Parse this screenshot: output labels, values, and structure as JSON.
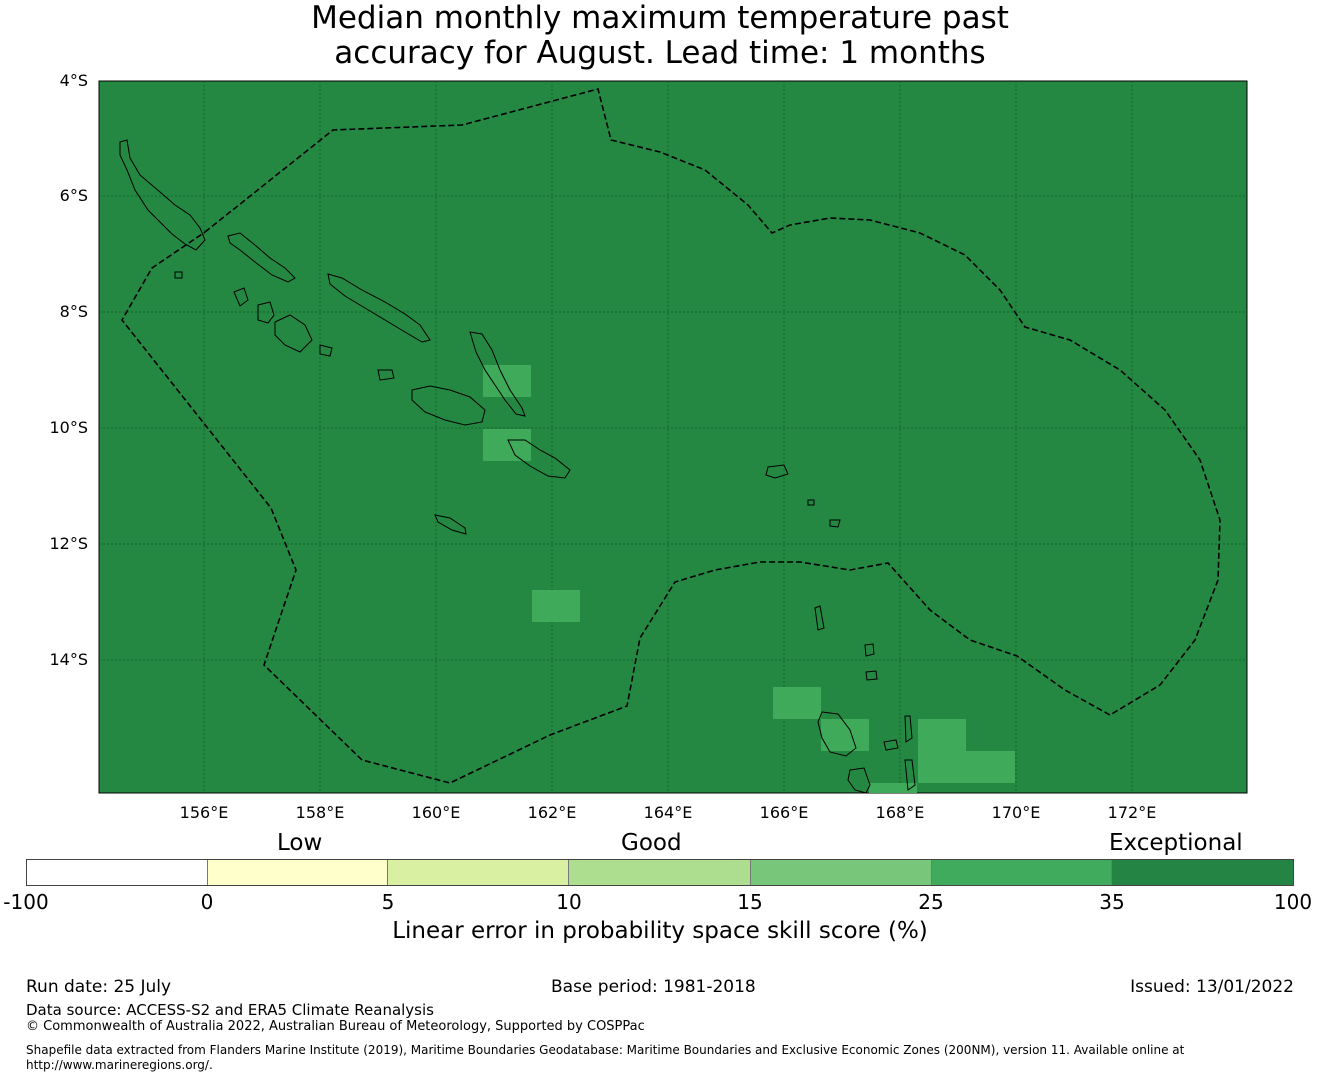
{
  "title_line1": "Median monthly maximum temperature past",
  "title_line2": "accuracy for August. Lead time: 1 months",
  "map": {
    "lat_labels": [
      "4°S",
      "6°S",
      "8°S",
      "10°S",
      "12°S",
      "14°S"
    ],
    "lon_labels": [
      "156°E",
      "158°E",
      "160°E",
      "162°E",
      "164°E",
      "166°E",
      "168°E",
      "170°E",
      "172°E"
    ],
    "background_color": "#248843",
    "highlight_color": "#3eaa5a"
  },
  "legend": {
    "categories": [
      "Low",
      "Good",
      "Exceptional"
    ],
    "ticks": [
      "-100",
      "0",
      "5",
      "10",
      "15",
      "25",
      "35",
      "100"
    ],
    "colors": [
      "#ffffff",
      "#ffffcc",
      "#d9f0a3",
      "#addd8e",
      "#78c679",
      "#41ab5d",
      "#238443"
    ],
    "label": "Linear error in probability space skill score (%)"
  },
  "footer": {
    "run_date": "Run date: 25 July",
    "base_period": "Base period: 1981-2018",
    "issued": "Issued: 13/01/2022",
    "data_source": "Data source: ACCESS-S2 and ERA5 Climate Reanalysis",
    "copyright": "© Commonwealth of Australia 2022, Australian Bureau of Meteorology, Supported by COSPPac",
    "shapefile_line1": "Shapefile data extracted from Flanders Marine Institute (2019), Maritime Boundaries Geodatabase: Maritime Boundaries and Exclusive Economic Zones (200NM), version 11. Available online at",
    "shapefile_line2": "http://www.marineregions.org/."
  }
}
